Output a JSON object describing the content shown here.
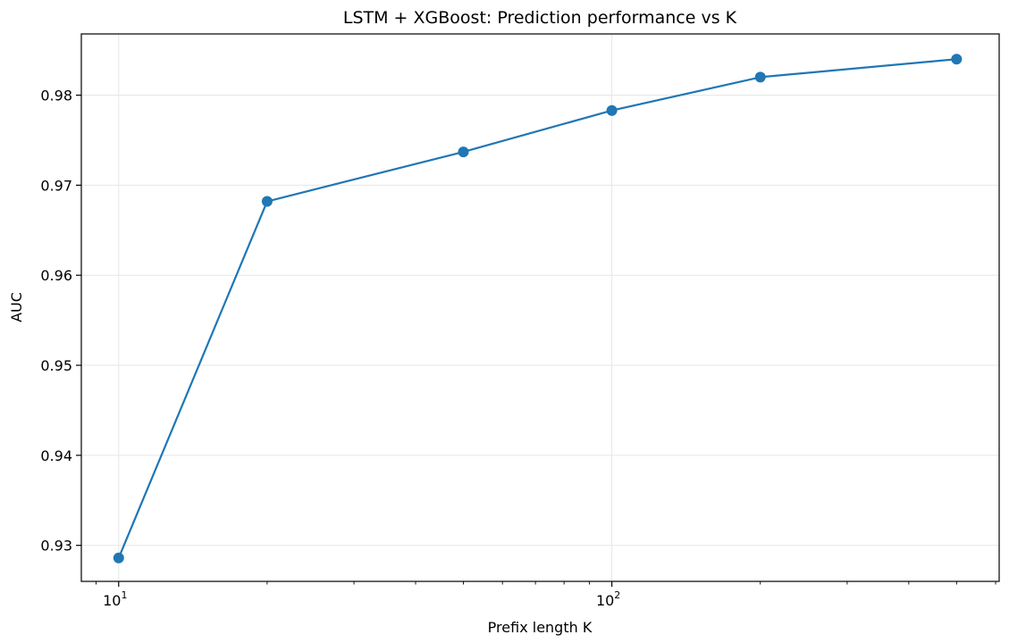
{
  "chart_data": {
    "type": "line",
    "title": "LSTM + XGBoost: Prediction performance vs K",
    "xlabel": "Prefix length K",
    "ylabel": "AUC",
    "xscale": "log",
    "xlim": [
      8.4,
      610
    ],
    "ylim": [
      0.926,
      0.9868
    ],
    "grid": true,
    "x_ticks": [
      {
        "value": 10,
        "base": "10",
        "exp": "1"
      },
      {
        "value": 100,
        "base": "10",
        "exp": "2"
      }
    ],
    "y_ticks": [
      {
        "value": 0.93,
        "label": "0.93"
      },
      {
        "value": 0.94,
        "label": "0.94"
      },
      {
        "value": 0.95,
        "label": "0.95"
      },
      {
        "value": 0.96,
        "label": "0.96"
      },
      {
        "value": 0.97,
        "label": "0.97"
      },
      {
        "value": 0.98,
        "label": "0.98"
      }
    ],
    "series": [
      {
        "color": "#1f77b4",
        "x": [
          10,
          20,
          50,
          100,
          200,
          500
        ],
        "y": [
          0.9286,
          0.9682,
          0.9737,
          0.9783,
          0.982,
          0.984
        ]
      }
    ]
  }
}
